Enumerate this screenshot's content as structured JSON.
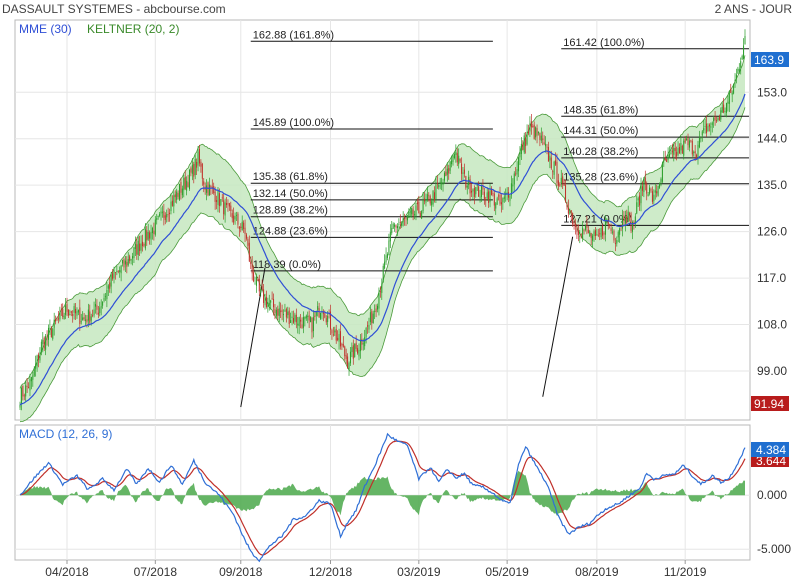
{
  "header": {
    "title": "DASSAULT SYSTEMES - abcbourse.com",
    "period": "2 ANS - JOUR"
  },
  "colors": {
    "up": "#2a9d2a",
    "down": "#c0302a",
    "mme": "#2f4fd6",
    "keltner_fill": "#c6e8c0",
    "keltner_line": "#4a9a3a",
    "macd": "#2f6fd6",
    "signal": "#c0302a",
    "hist": "#4aa84a",
    "last_badge": "#1f6fd0",
    "low_badge": "#b81c1c"
  },
  "chart_data": [
    {
      "type": "candlestick",
      "legend": [
        "MME (30)",
        "KELTNER (20, 2)"
      ],
      "x_ticks": [
        "04/2018",
        "07/2018",
        "09/2018",
        "12/2018",
        "03/2019",
        "05/2019",
        "08/2019",
        "11/2019"
      ],
      "x_tick_index": [
        33,
        95,
        155,
        218,
        280,
        342,
        405,
        467
      ],
      "y_ticks": [
        99,
        108,
        117,
        126,
        135,
        144,
        153
      ],
      "y_tick_labels": [
        "99.00",
        "108.0",
        "117.0",
        "126.0",
        "135.0",
        "144.0",
        "153.0"
      ],
      "ylim": [
        89.5,
        167
      ],
      "n_days": 510,
      "last_value": "163.9",
      "low_value": "91.94",
      "close_anchors": [
        [
          0,
          94
        ],
        [
          8,
          97
        ],
        [
          15,
          104
        ],
        [
          25,
          108
        ],
        [
          33,
          111
        ],
        [
          45,
          109
        ],
        [
          55,
          111
        ],
        [
          65,
          117
        ],
        [
          75,
          120
        ],
        [
          85,
          124
        ],
        [
          95,
          127
        ],
        [
          105,
          131
        ],
        [
          112,
          134
        ],
        [
          120,
          137
        ],
        [
          125,
          140
        ],
        [
          130,
          135
        ],
        [
          138,
          133
        ],
        [
          145,
          130
        ],
        [
          152,
          128
        ],
        [
          158,
          126
        ],
        [
          162,
          119
        ],
        [
          168,
          114
        ],
        [
          175,
          112
        ],
        [
          185,
          110
        ],
        [
          195,
          109
        ],
        [
          205,
          108
        ],
        [
          212,
          112
        ],
        [
          218,
          108
        ],
        [
          225,
          104
        ],
        [
          230,
          101
        ],
        [
          238,
          104
        ],
        [
          245,
          108
        ],
        [
          250,
          112
        ],
        [
          255,
          118
        ],
        [
          262,
          127
        ],
        [
          270,
          128
        ],
        [
          280,
          130
        ],
        [
          290,
          133
        ],
        [
          300,
          137
        ],
        [
          305,
          142
        ],
        [
          312,
          136
        ],
        [
          320,
          134
        ],
        [
          330,
          133
        ],
        [
          338,
          131
        ],
        [
          345,
          135
        ],
        [
          352,
          142
        ],
        [
          358,
          146
        ],
        [
          365,
          144
        ],
        [
          372,
          140
        ],
        [
          380,
          135
        ],
        [
          385,
          131
        ],
        [
          390,
          127
        ],
        [
          398,
          126
        ],
        [
          405,
          124
        ],
        [
          412,
          128
        ],
        [
          418,
          125
        ],
        [
          425,
          130
        ],
        [
          430,
          127
        ],
        [
          438,
          136
        ],
        [
          445,
          132
        ],
        [
          452,
          139
        ],
        [
          460,
          141
        ],
        [
          468,
          143
        ],
        [
          475,
          142
        ],
        [
          482,
          146
        ],
        [
          490,
          148
        ],
        [
          497,
          151
        ],
        [
          503,
          156
        ],
        [
          509,
          163.9
        ]
      ],
      "fibonacci": [
        {
          "group": "left",
          "start_index": 162,
          "end_index": 332,
          "levels": [
            {
              "value": 162.88,
              "label": "162.88  (161.8%)"
            },
            {
              "value": 145.89,
              "label": "145.89  (100.0%)"
            },
            {
              "value": 135.38,
              "label": "135.38  (61.8%)"
            },
            {
              "value": 132.14,
              "label": "132.14  (50.0%)"
            },
            {
              "value": 128.89,
              "label": "128.89  (38.2%)"
            },
            {
              "value": 124.88,
              "label": "124.88  (23.6%)"
            },
            {
              "value": 118.39,
              "label": "118.39  (0.0%)"
            }
          ],
          "trendline": [
            [
              155,
              92
            ],
            [
              172,
              119
            ]
          ]
        },
        {
          "group": "right",
          "start_index": 380,
          "end_index": 510,
          "levels": [
            {
              "value": 161.42,
              "label": "161.42  (100.0%)"
            },
            {
              "value": 148.35,
              "label": "148.35  (61.8%)"
            },
            {
              "value": 144.31,
              "label": "144.31  (50.0%)"
            },
            {
              "value": 140.28,
              "label": "140.28  (38.2%)"
            },
            {
              "value": 135.28,
              "label": "135.28  (23.6%)"
            },
            {
              "value": 127.21,
              "label": "127.21  (0.0%)"
            }
          ],
          "trendline": [
            [
              367,
              94
            ],
            [
              388,
              125
            ]
          ]
        }
      ]
    },
    {
      "type": "line",
      "legend": "MACD (12, 26, 9)",
      "y_ticks": [
        -5,
        0
      ],
      "y_tick_labels": [
        "-5.000",
        "0.000"
      ],
      "ylim": [
        -6.0,
        6.5
      ],
      "last_macd": "4.384",
      "last_signal": "3.644",
      "macd_anchors": [
        [
          0,
          0
        ],
        [
          10,
          1.6
        ],
        [
          20,
          3.0
        ],
        [
          30,
          1.0
        ],
        [
          40,
          1.8
        ],
        [
          48,
          0.5
        ],
        [
          58,
          1.5
        ],
        [
          66,
          0.5
        ],
        [
          75,
          2.4
        ],
        [
          82,
          1.0
        ],
        [
          90,
          2.5
        ],
        [
          98,
          1.2
        ],
        [
          106,
          2.8
        ],
        [
          114,
          1.0
        ],
        [
          122,
          3.2
        ],
        [
          130,
          1.2
        ],
        [
          140,
          0.0
        ],
        [
          150,
          -1.8
        ],
        [
          158,
          -4.2
        ],
        [
          163,
          -5.4
        ],
        [
          168,
          -6.0
        ],
        [
          176,
          -4.6
        ],
        [
          184,
          -3.8
        ],
        [
          192,
          -2.2
        ],
        [
          200,
          -2.0
        ],
        [
          210,
          -0.5
        ],
        [
          218,
          -0.8
        ],
        [
          225,
          -3.8
        ],
        [
          230,
          -2.5
        ],
        [
          236,
          -1.4
        ],
        [
          242,
          0.8
        ],
        [
          250,
          3.0
        ],
        [
          258,
          5.6
        ],
        [
          265,
          5.0
        ],
        [
          272,
          4.6
        ],
        [
          280,
          1.5
        ],
        [
          288,
          2.6
        ],
        [
          294,
          1.2
        ],
        [
          300,
          2.4
        ],
        [
          306,
          1.6
        ],
        [
          312,
          2.0
        ],
        [
          318,
          0.9
        ],
        [
          324,
          0.8
        ],
        [
          332,
          0.2
        ],
        [
          338,
          -0.5
        ],
        [
          344,
          -0.8
        ],
        [
          350,
          2.8
        ],
        [
          355,
          4.5
        ],
        [
          362,
          2.8
        ],
        [
          370,
          1.0
        ],
        [
          378,
          -2.0
        ],
        [
          385,
          -3.6
        ],
        [
          392,
          -3.0
        ],
        [
          400,
          -2.6
        ],
        [
          406,
          -1.8
        ],
        [
          412,
          -1.2
        ],
        [
          420,
          -0.8
        ],
        [
          428,
          0.0
        ],
        [
          435,
          0.6
        ],
        [
          440,
          2.0
        ],
        [
          445,
          1.5
        ],
        [
          452,
          1.8
        ],
        [
          460,
          2.0
        ],
        [
          466,
          2.8
        ],
        [
          472,
          1.8
        ],
        [
          478,
          1.0
        ],
        [
          486,
          1.8
        ],
        [
          492,
          1.2
        ],
        [
          498,
          1.6
        ],
        [
          504,
          3.0
        ],
        [
          509,
          4.384
        ]
      ]
    }
  ]
}
